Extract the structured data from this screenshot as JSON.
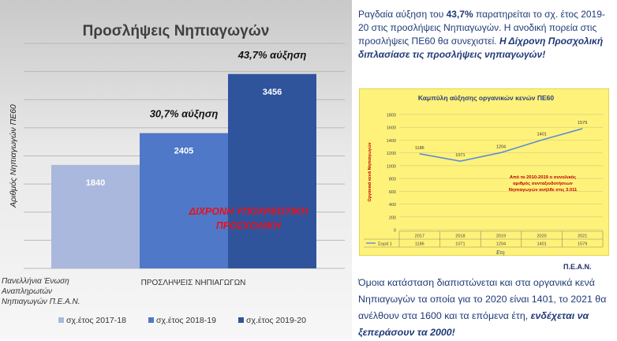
{
  "chart_data": [
    {
      "type": "bar",
      "title": "Προσλήψεις Νηπιαγωγών",
      "ylabel": "Αριθμός Νηπιαγωγών ΠΕ60",
      "xlabel": "ΠΡΟΣΛΗΨΕΙΣ ΝΗΠΙΑΓΩΓΩΝ",
      "ylim": [
        0,
        4000
      ],
      "categories": [
        "ΠΡΟΣΛΗΨΕΙΣ ΝΗΠΙΑΓΩΓΩΝ"
      ],
      "series": [
        {
          "name": "σχ.έτος 2017-18",
          "values": [
            1840
          ],
          "color": "#a9b8dc"
        },
        {
          "name": "σχ.έτος 2018-19",
          "values": [
            2405
          ],
          "color": "#4f78c8"
        },
        {
          "name": "σχ.έτος 2019-20",
          "values": [
            3456
          ],
          "color": "#2f549c"
        }
      ],
      "grid": true,
      "legend": "bottom",
      "annotations": [
        {
          "text": "30,7% αύξηση",
          "series": 1
        },
        {
          "text": "43,7% αύξηση",
          "series": 2
        }
      ],
      "overlay_text": [
        "ΔΙΧΡΟΝΗ   ΥΠΟΧΡΕΩΤΙΚΗ",
        "ΠΡΟΣΧΟΛΙΚΗ"
      ],
      "overlay_color": "#e8101c"
    },
    {
      "type": "line",
      "title": "Καμπύλη αύξησης οργανικών κενών ΠΕ60",
      "ylabel": "Οργανικά κενά Νηπιαγωγών",
      "xlabel": "Έτη",
      "x": [
        "2017",
        "2018",
        "2019",
        "2020",
        "2021"
      ],
      "yticks": [
        0,
        200,
        400,
        600,
        800,
        1000,
        1200,
        1400,
        1600,
        1800
      ],
      "ylim": [
        0,
        1800
      ],
      "series": [
        {
          "name": "Σειρά 1",
          "values": [
            1186,
            1071,
            1204,
            1401,
            1579
          ],
          "color": "#5b8ed6"
        }
      ],
      "grid": true,
      "legend": "bottom-left table",
      "annotation": [
        "Από το 2010-2019 ο συνολικός",
        "αριθμός συνταξιοδοτήσεων",
        "Νηπιαγωγών ανήλθε στις 3.011"
      ],
      "annotation_color": "#c00000"
    }
  ],
  "footnote": {
    "line1": "Πανελλήνια Ένωση",
    "line2": "Αναπληρωτών",
    "line3": "Νηπιαγωγών Π.Ε.Α.Ν."
  },
  "text_top": {
    "p1": "Ραγδαία αύξηση του ",
    "b1": "43,7%",
    "p2": " παρατηρείται το σχ. έτος 2019-20 στις προσλήψεις Νηπιαγωγών. Η ανοδική πορεία στις προσλήψεις ΠΕ60 θα συνεχιστεί. ",
    "b2": "Η Δίχρονη Προσχολική διπλασίασε τις προσλήψεις νηπιαγωγών!"
  },
  "text_bottom": {
    "p1": "Όμοια κατάσταση διαπιστώνεται και στα οργανικά κενά Νηπιαγωγών τα οποία για το 2020 είναι 1401, το 2021 θα ανέλθουν στα 1600 και τα επόμενα έτη, ",
    "b1": "ενδέχεται να ξεπεράσουν τα 2000!"
  },
  "pean_label": "Π.Ε.Α.Ν.",
  "colors": {
    "text_blue": "#1f3a78",
    "mini_bg": "#fff27a"
  }
}
